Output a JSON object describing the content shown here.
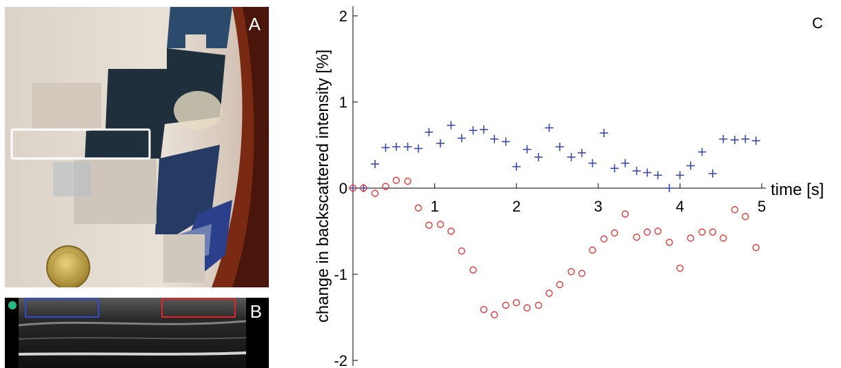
{
  "panels": {
    "a_label": "A",
    "b_label": "B",
    "c_label": "C"
  },
  "colors": {
    "series_blue": "#3b4aa8",
    "series_red": "#e23b3b",
    "ultrasound_box_blue": "#2f4bd0",
    "ultrasound_box_red": "#e02525",
    "ultrasound_marker": "#26b884"
  },
  "chart_data": {
    "type": "scatter",
    "title": "",
    "xlabel": "time [s]",
    "ylabel": "change in backscattered intensity [%]",
    "xlim": [
      0,
      5
    ],
    "ylim": [
      -2,
      2
    ],
    "xticks": [
      1,
      2,
      3,
      4,
      5
    ],
    "yticks": [
      2,
      1,
      0,
      -1,
      -2
    ],
    "grid": false,
    "series": [
      {
        "marker": "plus",
        "color": "#3b4aa8",
        "x": [
          0.0,
          0.13,
          0.27,
          0.4,
          0.53,
          0.67,
          0.8,
          0.93,
          1.07,
          1.2,
          1.33,
          1.47,
          1.6,
          1.73,
          1.87,
          2.0,
          2.13,
          2.27,
          2.4,
          2.53,
          2.67,
          2.8,
          2.93,
          3.07,
          3.2,
          3.33,
          3.47,
          3.6,
          3.73,
          3.87,
          4.0,
          4.13,
          4.27,
          4.4,
          4.53,
          4.67,
          4.8,
          4.93
        ],
        "y": [
          0.0,
          0.0,
          0.28,
          0.47,
          0.48,
          0.48,
          0.46,
          0.65,
          0.52,
          0.73,
          0.58,
          0.67,
          0.68,
          0.57,
          0.54,
          0.25,
          0.45,
          0.36,
          0.7,
          0.48,
          0.36,
          0.41,
          0.29,
          0.64,
          0.23,
          0.29,
          0.2,
          0.18,
          0.15,
          0.0,
          0.15,
          0.26,
          0.42,
          0.17,
          0.57,
          0.56,
          0.57,
          0.55
        ]
      },
      {
        "marker": "circle",
        "color": "#e23b3b",
        "x": [
          0.0,
          0.13,
          0.27,
          0.4,
          0.53,
          0.67,
          0.8,
          0.93,
          1.07,
          1.2,
          1.33,
          1.47,
          1.6,
          1.73,
          1.87,
          2.0,
          2.13,
          2.27,
          2.4,
          2.53,
          2.67,
          2.8,
          2.93,
          3.07,
          3.2,
          3.33,
          3.47,
          3.6,
          3.73,
          3.87,
          4.0,
          4.13,
          4.27,
          4.4,
          4.53,
          4.67,
          4.8,
          4.93
        ],
        "y": [
          0.0,
          0.0,
          -0.06,
          0.02,
          0.09,
          0.08,
          -0.23,
          -0.43,
          -0.42,
          -0.5,
          -0.73,
          -0.95,
          -1.41,
          -1.47,
          -1.36,
          -1.33,
          -1.39,
          -1.36,
          -1.22,
          -1.12,
          -0.97,
          -0.99,
          -0.72,
          -0.59,
          -0.52,
          -0.3,
          -0.57,
          -0.51,
          -0.5,
          -0.63,
          -0.93,
          -0.58,
          -0.51,
          -0.51,
          -0.58,
          -0.25,
          -0.33,
          -0.69
        ]
      }
    ]
  }
}
